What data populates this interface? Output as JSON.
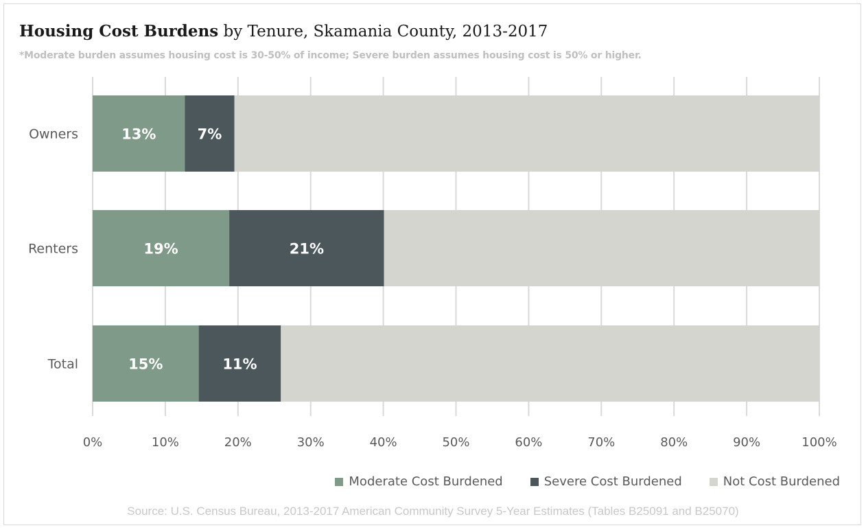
{
  "title_bold": "Housing Cost Burdens",
  "title_rest": " by Tenure, Skamania County, 2013-2017",
  "subtitle": "*Moderate burden assumes housing cost is 30-50% of income; Severe burden assumes housing cost is 50% or higher.",
  "source": "Source: U.S. Census Bureau, 2013-2017 American Community Survey 5-Year Estimates (Tables B25091 and B25070)",
  "chart_data": {
    "type": "bar",
    "orientation": "horizontal",
    "stacked": "percent",
    "categories": [
      "Owners",
      "Renters",
      "Total"
    ],
    "series": [
      {
        "name": "Moderate Cost Burdened",
        "values": [
          12.7,
          18.8,
          14.6
        ],
        "labels": [
          "13%",
          "19%",
          "15%"
        ],
        "color": "#7f9a88"
      },
      {
        "name": "Severe Cost Burdened",
        "values": [
          6.8,
          21.3,
          11.3
        ],
        "labels": [
          "7%",
          "21%",
          "11%"
        ],
        "color": "#4c575c"
      },
      {
        "name": "Not Cost Burdened",
        "values": [
          80.5,
          59.9,
          74.1
        ],
        "labels": [
          "",
          "",
          ""
        ],
        "color": "#d3d5ce"
      }
    ],
    "xlim": [
      0,
      100
    ],
    "x_ticks": [
      "0%",
      "10%",
      "20%",
      "30%",
      "40%",
      "50%",
      "60%",
      "70%",
      "80%",
      "90%",
      "100%"
    ],
    "grid": true,
    "legend_position": "bottom-right"
  }
}
